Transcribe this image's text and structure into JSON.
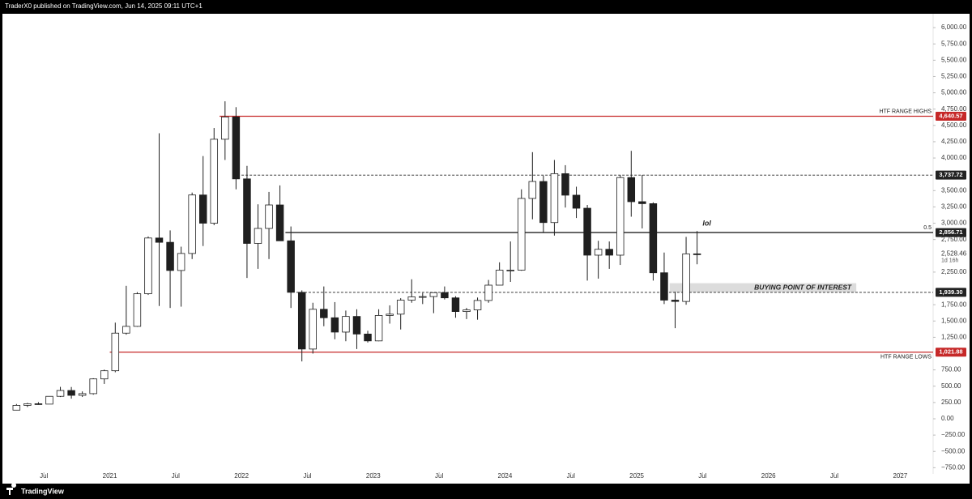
{
  "header": {
    "text": "TraderX0 published on TradingView.com, Jun 14, 2025 09:11 UTC+1"
  },
  "footer": {
    "brand": "TradingView"
  },
  "chart_data": {
    "type": "candlestick",
    "x": [
      "2020-04",
      "2020-05",
      "2020-06",
      "2020-07",
      "2020-08",
      "2020-09",
      "2020-10",
      "2020-11",
      "2020-12",
      "2021-01",
      "2021-02",
      "2021-03",
      "2021-04",
      "2021-05",
      "2021-06",
      "2021-07",
      "2021-08",
      "2021-09",
      "2021-10",
      "2021-11",
      "2021-12",
      "2022-01",
      "2022-02",
      "2022-03",
      "2022-04",
      "2022-05",
      "2022-06",
      "2022-07",
      "2022-08",
      "2022-09",
      "2022-10",
      "2022-11",
      "2022-12",
      "2023-01",
      "2023-02",
      "2023-03",
      "2023-04",
      "2023-05",
      "2023-06",
      "2023-07",
      "2023-08",
      "2023-09",
      "2023-10",
      "2023-11",
      "2023-12",
      "2024-01",
      "2024-02",
      "2024-03",
      "2024-04",
      "2024-05",
      "2024-06",
      "2024-07",
      "2024-08",
      "2024-09",
      "2024-10",
      "2024-11",
      "2024-12",
      "2025-01",
      "2025-02",
      "2025-03",
      "2025-04",
      "2025-05",
      "2025-06"
    ],
    "open": [
      133,
      206,
      231,
      225,
      345,
      434,
      360,
      386,
      612,
      737,
      1314,
      1418,
      1918,
      2773,
      2707,
      2275,
      2536,
      3433,
      3000,
      4288,
      4630,
      3680,
      2690,
      2920,
      3280,
      2730,
      1940,
      1070,
      1680,
      1550,
      1330,
      1570,
      1300,
      1195,
      1585,
      1605,
      1820,
      1870,
      1875,
      1935,
      1855,
      1645,
      1670,
      1815,
      2050,
      2280,
      2280,
      3380,
      3640,
      3010,
      3760,
      3430,
      3230,
      2510,
      2600,
      2510,
      3700,
      3330,
      3300,
      2240,
      1820,
      1800,
      2530
    ],
    "high": [
      227,
      245,
      255,
      345,
      490,
      488,
      420,
      622,
      754,
      1475,
      2040,
      1943,
      2797,
      4380,
      2890,
      2640,
      3470,
      4030,
      4460,
      4870,
      4780,
      3880,
      3290,
      3480,
      3580,
      2950,
      1970,
      1780,
      2030,
      1790,
      1660,
      1680,
      1350,
      1680,
      1740,
      1850,
      2140,
      1930,
      1930,
      2030,
      1880,
      1700,
      1860,
      2130,
      2400,
      2720,
      3520,
      4090,
      3730,
      3970,
      3890,
      3560,
      3280,
      2730,
      2720,
      3740,
      4110,
      3740,
      3320,
      2550,
      1950,
      2790,
      2880
    ],
    "low": [
      130,
      180,
      215,
      224,
      334,
      309,
      335,
      370,
      535,
      714,
      1290,
      1410,
      1900,
      1730,
      1700,
      1720,
      2450,
      2650,
      2970,
      3970,
      3520,
      2160,
      2300,
      2450,
      2780,
      1700,
      880,
      1000,
      1420,
      1220,
      1190,
      1070,
      1170,
      1190,
      1460,
      1370,
      1780,
      1760,
      1620,
      1830,
      1550,
      1530,
      1520,
      1780,
      2050,
      2100,
      2270,
      3060,
      2860,
      2810,
      3240,
      3080,
      2120,
      2150,
      2300,
      2360,
      3100,
      2920,
      2120,
      1760,
      1390,
      1750,
      2370
    ],
    "close": [
      206,
      231,
      225,
      345,
      434,
      360,
      386,
      612,
      737,
      1314,
      1418,
      1918,
      2773,
      2707,
      2275,
      2536,
      3433,
      3000,
      4288,
      4630,
      3680,
      2690,
      2920,
      3280,
      2730,
      1940,
      1070,
      1680,
      1550,
      1330,
      1570,
      1300,
      1195,
      1585,
      1605,
      1820,
      1870,
      1875,
      1935,
      1855,
      1645,
      1670,
      1815,
      2050,
      2280,
      2280,
      3380,
      3640,
      3010,
      3760,
      3430,
      3230,
      2510,
      2600,
      2510,
      3700,
      3330,
      3300,
      2240,
      1820,
      1800,
      2530,
      2528.46
    ],
    "xlim": [
      "2020-03",
      "2027-04"
    ],
    "xticks": [
      {
        "value": "2020-07",
        "label": "Jul"
      },
      {
        "value": "2021-01",
        "label": "2021"
      },
      {
        "value": "2021-07",
        "label": "Jul"
      },
      {
        "value": "2022-01",
        "label": "2022"
      },
      {
        "value": "2022-07",
        "label": "Jul"
      },
      {
        "value": "2023-01",
        "label": "2023"
      },
      {
        "value": "2023-07",
        "label": "Jul"
      },
      {
        "value": "2024-01",
        "label": "2024"
      },
      {
        "value": "2024-07",
        "label": "Jul"
      },
      {
        "value": "2025-01",
        "label": "2025"
      },
      {
        "value": "2025-07",
        "label": "Jul"
      },
      {
        "value": "2026-01",
        "label": "2026"
      },
      {
        "value": "2026-07",
        "label": "Jul"
      },
      {
        "value": "2027-01",
        "label": "2027"
      }
    ],
    "ylim": [
      -845,
      6200
    ],
    "yticks": [
      {
        "value": 6000,
        "label": "6,000.00"
      },
      {
        "value": 5750,
        "label": "5,750.00"
      },
      {
        "value": 5500,
        "label": "5,500.00"
      },
      {
        "value": 5250,
        "label": "5,250.00"
      },
      {
        "value": 5000,
        "label": "5,000.00"
      },
      {
        "value": 4750,
        "label": "4,750.00"
      },
      {
        "value": 4500,
        "label": "4,500.00"
      },
      {
        "value": 4250,
        "label": "4,250.00"
      },
      {
        "value": 4000,
        "label": "4,000.00"
      },
      {
        "value": 3500,
        "label": "3,500.00"
      },
      {
        "value": 3250,
        "label": "3,250.00"
      },
      {
        "value": 3000,
        "label": "3,000.00"
      },
      {
        "value": 2750,
        "label": "2,750.00"
      },
      {
        "value": 2250,
        "label": "2,250.00"
      },
      {
        "value": 1750,
        "label": "1,750.00"
      },
      {
        "value": 1500,
        "label": "1,500.00"
      },
      {
        "value": 1250,
        "label": "1,250.00"
      },
      {
        "value": 750,
        "label": "750.00"
      },
      {
        "value": 500,
        "label": "500.00"
      },
      {
        "value": 250,
        "label": "250.00"
      },
      {
        "value": 0,
        "label": "0.00"
      },
      {
        "value": -250,
        "label": "−250.00"
      },
      {
        "value": -500,
        "label": "−500.00"
      },
      {
        "value": -750,
        "label": "−750.00"
      }
    ],
    "up_color": "#ffffff",
    "down_color": "#1f1f1f",
    "wick_color": "#1f1f1f",
    "levels": [
      {
        "value": 4640.57,
        "label": "4,640.57",
        "name": "HTF RANGE HIGHS",
        "color": "#c62828",
        "style": "solid",
        "start": "2021-11"
      },
      {
        "value": 3737.72,
        "label": "3,737.72",
        "color": "#222222",
        "style": "dashed",
        "start": "2022-01"
      },
      {
        "value": 2856.71,
        "label": "2,856.71",
        "name": "0.5",
        "color": "#222222",
        "style": "solid",
        "start": "2022-05"
      },
      {
        "value": 1939.3,
        "label": "1,939.30",
        "color": "#222222",
        "style": "dashed",
        "start": "2022-06"
      },
      {
        "value": 1021.88,
        "label": "1,021.88",
        "name": "HTF RANGE LOWS",
        "color": "#c62828",
        "style": "solid",
        "start": "2021-01"
      }
    ],
    "last_price": {
      "value": 2528.46,
      "label": "2,528.46",
      "countdown": "1d 16h"
    },
    "zone": {
      "text": "BUYING POINT OF INTEREST",
      "from": "2025-04",
      "to": "2026-09",
      "low": 1939.3,
      "high": 2080,
      "color": "#dcdcdc"
    },
    "annotation": {
      "text": "lol",
      "x": "2025-07",
      "y": 2990
    }
  }
}
